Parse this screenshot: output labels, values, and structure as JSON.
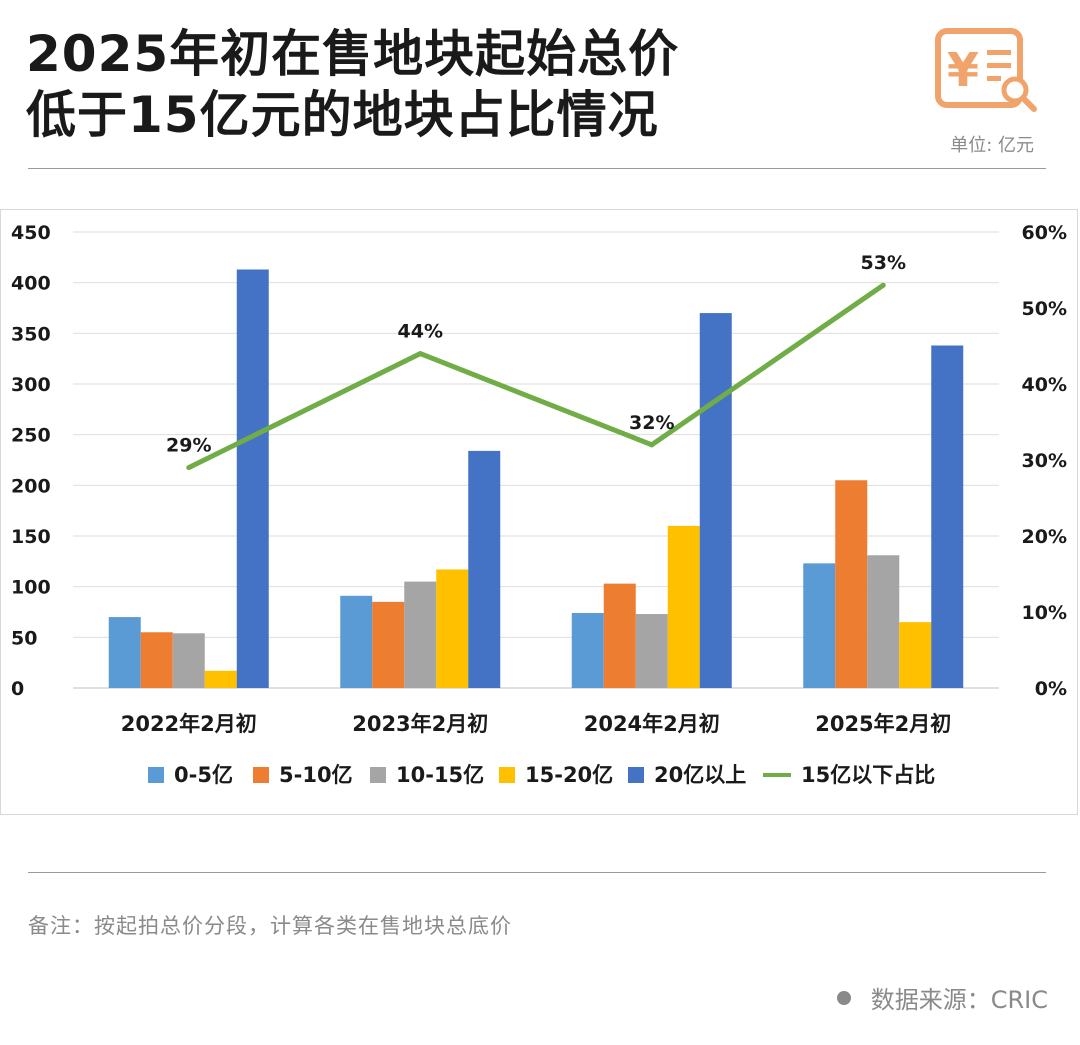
{
  "header": {
    "title_line1": "2025年初在售地块起始总价",
    "title_line2": "低于15亿元的地块占比情况",
    "unit": "单位: 亿元",
    "logo_icon": "price-document-search-icon",
    "logo_glyph": "¥"
  },
  "footer": {
    "note": "备注：按起拍总价分段，计算各类在售地块总底价",
    "source": "数据来源：CRIC"
  },
  "colors": {
    "s0": "#5b9bd5",
    "s1": "#ed7d31",
    "s2": "#a5a5a5",
    "s3": "#ffc000",
    "s4": "#4472c4",
    "line": "#70ad47",
    "logo": "#f0a36b"
  },
  "chart_data": {
    "type": "bar",
    "title": "2025年初在售地块起始总价低于15亿元的地块占比情况",
    "categories": [
      "2022年2月初",
      "2023年2月初",
      "2024年2月初",
      "2025年2月初"
    ],
    "series": [
      {
        "name": "0-5亿",
        "values": [
          70,
          91,
          74,
          123
        ]
      },
      {
        "name": "5-10亿",
        "values": [
          55,
          85,
          103,
          205
        ]
      },
      {
        "name": "10-15亿",
        "values": [
          54,
          105,
          73,
          131
        ]
      },
      {
        "name": "15-20亿",
        "values": [
          17,
          117,
          160,
          65
        ]
      },
      {
        "name": "20亿以上",
        "values": [
          413,
          234,
          370,
          338
        ]
      }
    ],
    "line_series": {
      "name": "15亿以下占比",
      "values": [
        29,
        44,
        32,
        53
      ],
      "labels": [
        "29%",
        "44%",
        "32%",
        "53%"
      ],
      "axis": "right"
    },
    "y_left": {
      "min": 0,
      "max": 450,
      "ticks": [
        0,
        50,
        100,
        150,
        200,
        250,
        300,
        350,
        400,
        450
      ]
    },
    "y_right": {
      "min": 0,
      "max": 60,
      "ticks": [
        "0%",
        "10%",
        "20%",
        "30%",
        "40%",
        "50%",
        "60%"
      ]
    },
    "grid": true,
    "legend": "bottom"
  }
}
